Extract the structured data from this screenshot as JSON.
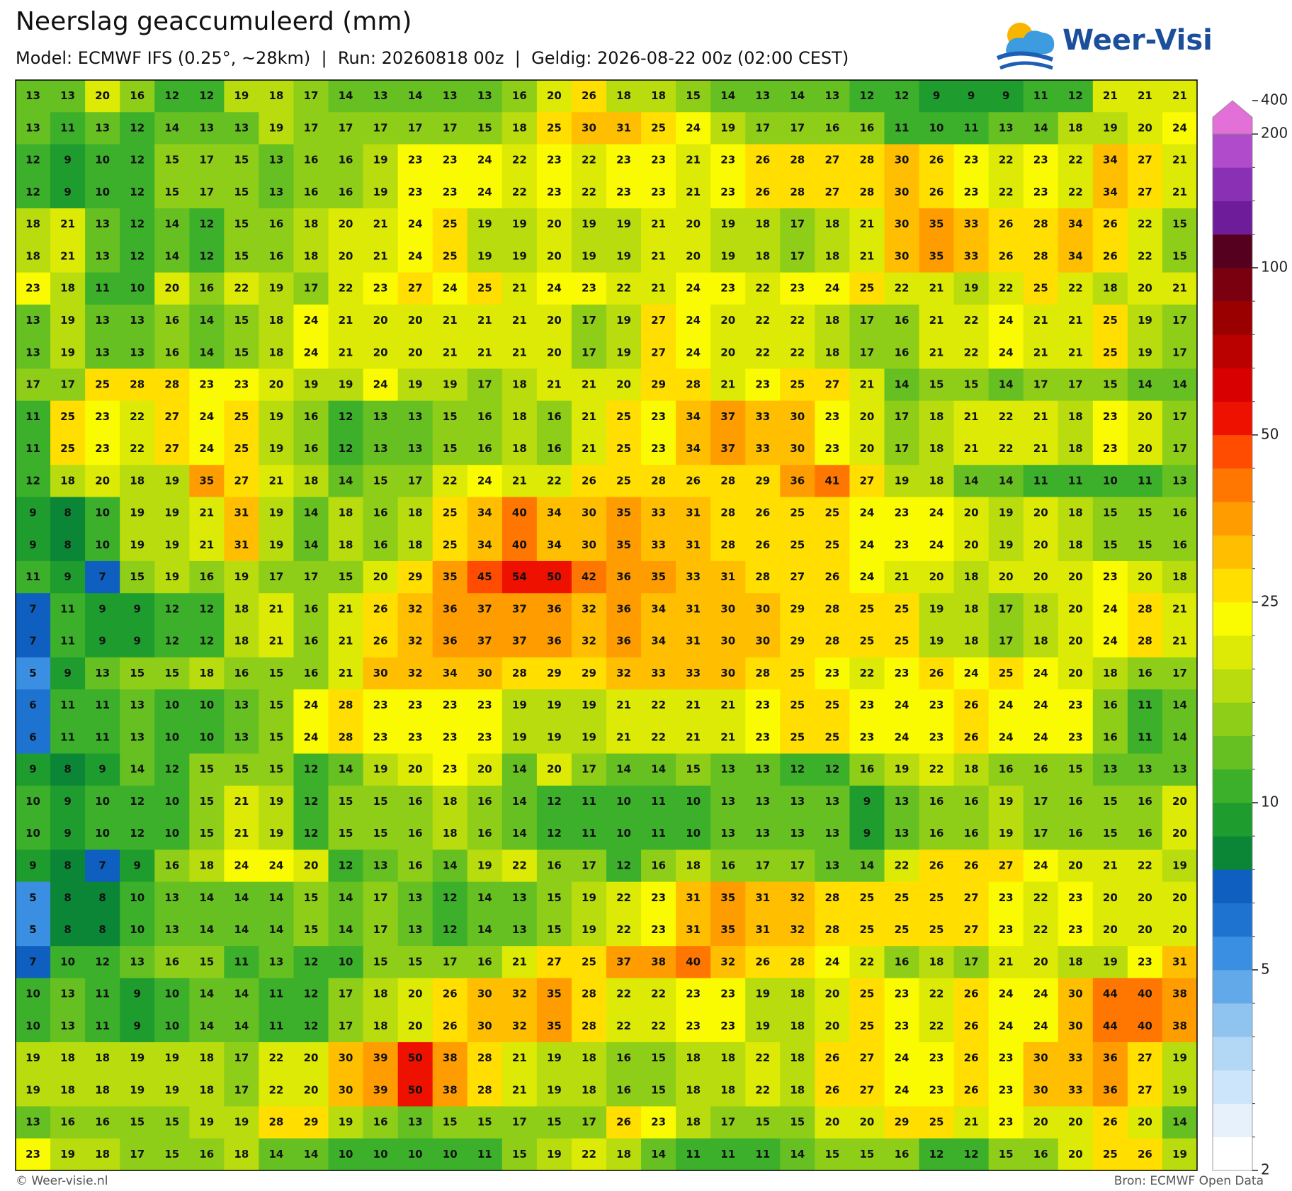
{
  "header": {
    "title": "Neerslag geaccumuleerd (mm)",
    "subtitle": "Model: ECMWF IFS (0.25°, ~28km)  |  Run: 20260818 00z  |  Geldig: 2026-08-22 00z (02:00 CEST)",
    "logo": "Weer-Visie"
  },
  "map": {
    "values": [
      [
        13,
        13,
        20,
        16,
        12,
        12,
        19,
        18,
        17,
        14,
        13,
        14,
        13,
        13,
        16,
        20,
        26,
        18,
        18,
        15,
        14,
        13,
        14,
        13,
        12,
        12,
        9,
        9,
        9,
        11,
        12,
        21,
        21,
        21
      ],
      [
        13,
        11,
        13,
        12,
        14,
        13,
        13,
        19,
        17,
        17,
        17,
        17,
        17,
        15,
        18,
        25,
        30,
        31,
        25,
        24,
        19,
        17,
        17,
        16,
        16,
        11,
        10,
        11,
        13,
        14,
        18,
        19,
        20,
        24
      ],
      [
        12,
        9,
        10,
        12,
        15,
        17,
        15,
        13,
        16,
        16,
        19,
        23,
        23,
        24,
        22,
        23,
        22,
        23,
        23,
        21,
        23,
        26,
        28,
        27,
        28,
        30,
        26,
        23,
        22,
        23,
        22,
        34,
        27,
        21
      ],
      [
        12,
        9,
        10,
        12,
        15,
        17,
        15,
        13,
        16,
        16,
        19,
        23,
        23,
        24,
        22,
        23,
        22,
        23,
        23,
        21,
        23,
        26,
        28,
        27,
        28,
        30,
        26,
        23,
        22,
        23,
        22,
        34,
        27,
        21
      ],
      [
        18,
        21,
        13,
        12,
        14,
        12,
        15,
        16,
        18,
        20,
        21,
        24,
        25,
        19,
        19,
        20,
        19,
        19,
        21,
        20,
        19,
        18,
        17,
        18,
        21,
        30,
        35,
        33,
        26,
        28,
        34,
        26,
        22,
        15
      ],
      [
        18,
        21,
        13,
        12,
        14,
        12,
        15,
        16,
        18,
        20,
        21,
        24,
        25,
        19,
        19,
        20,
        19,
        19,
        21,
        20,
        19,
        18,
        17,
        18,
        21,
        30,
        35,
        33,
        26,
        28,
        34,
        26,
        22,
        15
      ],
      [
        23,
        18,
        11,
        10,
        20,
        16,
        22,
        19,
        17,
        22,
        23,
        27,
        24,
        25,
        21,
        24,
        23,
        22,
        21,
        24,
        23,
        22,
        23,
        24,
        25,
        22,
        21,
        19,
        22,
        25,
        22,
        18,
        20,
        21
      ],
      [
        13,
        19,
        13,
        13,
        16,
        14,
        15,
        18,
        24,
        21,
        20,
        20,
        21,
        21,
        21,
        20,
        17,
        19,
        27,
        24,
        20,
        22,
        22,
        18,
        17,
        16,
        21,
        22,
        24,
        21,
        21,
        25,
        19,
        17
      ],
      [
        13,
        19,
        13,
        13,
        16,
        14,
        15,
        18,
        24,
        21,
        20,
        20,
        21,
        21,
        21,
        20,
        17,
        19,
        27,
        24,
        20,
        22,
        22,
        18,
        17,
        16,
        21,
        22,
        24,
        21,
        21,
        25,
        19,
        17
      ],
      [
        17,
        17,
        25,
        28,
        28,
        23,
        23,
        20,
        19,
        19,
        24,
        19,
        19,
        17,
        18,
        21,
        21,
        20,
        29,
        28,
        21,
        23,
        25,
        27,
        21,
        14,
        15,
        15,
        14,
        17,
        17,
        15,
        14,
        14
      ],
      [
        11,
        25,
        23,
        22,
        27,
        24,
        25,
        19,
        16,
        12,
        13,
        13,
        15,
        16,
        18,
        16,
        21,
        25,
        23,
        34,
        37,
        33,
        30,
        23,
        20,
        17,
        18,
        21,
        22,
        21,
        18,
        23,
        20,
        17
      ],
      [
        11,
        25,
        23,
        22,
        27,
        24,
        25,
        19,
        16,
        12,
        13,
        13,
        15,
        16,
        18,
        16,
        21,
        25,
        23,
        34,
        37,
        33,
        30,
        23,
        20,
        17,
        18,
        21,
        22,
        21,
        18,
        23,
        20,
        17
      ],
      [
        12,
        18,
        20,
        18,
        19,
        35,
        27,
        21,
        18,
        14,
        15,
        17,
        22,
        24,
        21,
        22,
        26,
        25,
        28,
        26,
        28,
        29,
        36,
        41,
        27,
        19,
        18,
        14,
        14,
        11,
        11,
        10,
        11,
        13
      ],
      [
        9,
        8,
        10,
        19,
        19,
        21,
        31,
        19,
        14,
        18,
        16,
        18,
        25,
        34,
        40,
        34,
        30,
        35,
        33,
        31,
        28,
        26,
        25,
        25,
        24,
        23,
        24,
        20,
        19,
        20,
        18,
        15,
        15,
        16
      ],
      [
        9,
        8,
        10,
        19,
        19,
        21,
        31,
        19,
        14,
        18,
        16,
        18,
        25,
        34,
        40,
        34,
        30,
        35,
        33,
        31,
        28,
        26,
        25,
        25,
        24,
        23,
        24,
        20,
        19,
        20,
        18,
        15,
        15,
        16
      ],
      [
        11,
        9,
        7,
        15,
        19,
        16,
        19,
        17,
        17,
        15,
        20,
        29,
        35,
        45,
        54,
        50,
        42,
        36,
        35,
        33,
        31,
        28,
        27,
        26,
        24,
        21,
        20,
        18,
        20,
        20,
        20,
        23,
        20,
        18
      ],
      [
        7,
        11,
        9,
        9,
        12,
        12,
        18,
        21,
        16,
        21,
        26,
        32,
        36,
        37,
        37,
        36,
        32,
        36,
        34,
        31,
        30,
        30,
        29,
        28,
        25,
        25,
        19,
        18,
        17,
        18,
        20,
        24,
        28,
        21
      ],
      [
        7,
        11,
        9,
        9,
        12,
        12,
        18,
        21,
        16,
        21,
        26,
        32,
        36,
        37,
        37,
        36,
        32,
        36,
        34,
        31,
        30,
        30,
        29,
        28,
        25,
        25,
        19,
        18,
        17,
        18,
        20,
        24,
        28,
        21
      ],
      [
        5,
        9,
        13,
        15,
        15,
        18,
        16,
        15,
        16,
        21,
        30,
        32,
        34,
        30,
        28,
        29,
        29,
        32,
        33,
        33,
        30,
        28,
        25,
        23,
        22,
        23,
        26,
        24,
        25,
        24,
        20,
        18,
        16,
        17
      ],
      [
        6,
        11,
        11,
        13,
        10,
        10,
        13,
        15,
        24,
        28,
        23,
        23,
        23,
        23,
        19,
        19,
        19,
        21,
        22,
        21,
        21,
        23,
        25,
        25,
        23,
        24,
        23,
        26,
        24,
        24,
        23,
        16,
        11,
        14
      ],
      [
        6,
        11,
        11,
        13,
        10,
        10,
        13,
        15,
        24,
        28,
        23,
        23,
        23,
        23,
        19,
        19,
        19,
        21,
        22,
        21,
        21,
        23,
        25,
        25,
        23,
        24,
        23,
        26,
        24,
        24,
        23,
        16,
        11,
        14
      ],
      [
        9,
        8,
        9,
        14,
        12,
        15,
        15,
        15,
        12,
        14,
        19,
        20,
        23,
        20,
        14,
        20,
        17,
        14,
        14,
        15,
        13,
        13,
        12,
        12,
        16,
        19,
        22,
        18,
        16,
        16,
        15,
        13,
        13,
        13
      ],
      [
        10,
        9,
        10,
        12,
        10,
        15,
        21,
        19,
        12,
        15,
        15,
        16,
        18,
        16,
        14,
        12,
        11,
        10,
        11,
        10,
        13,
        13,
        13,
        13,
        9,
        13,
        16,
        16,
        19,
        17,
        16,
        15,
        16,
        20
      ],
      [
        10,
        9,
        10,
        12,
        10,
        15,
        21,
        19,
        12,
        15,
        15,
        16,
        18,
        16,
        14,
        12,
        11,
        10,
        11,
        10,
        13,
        13,
        13,
        13,
        9,
        13,
        16,
        16,
        19,
        17,
        16,
        15,
        16,
        20
      ],
      [
        9,
        8,
        7,
        9,
        16,
        18,
        24,
        24,
        20,
        12,
        13,
        16,
        14,
        19,
        22,
        16,
        17,
        12,
        16,
        18,
        16,
        17,
        17,
        13,
        14,
        22,
        26,
        26,
        27,
        24,
        20,
        21,
        22,
        19
      ],
      [
        5,
        8,
        8,
        10,
        13,
        14,
        14,
        14,
        15,
        14,
        17,
        13,
        12,
        14,
        13,
        15,
        19,
        22,
        23,
        31,
        35,
        31,
        32,
        28,
        25,
        25,
        25,
        27,
        23,
        22,
        23,
        20,
        20,
        20
      ],
      [
        5,
        8,
        8,
        10,
        13,
        14,
        14,
        14,
        15,
        14,
        17,
        13,
        12,
        14,
        13,
        15,
        19,
        22,
        23,
        31,
        35,
        31,
        32,
        28,
        25,
        25,
        25,
        27,
        23,
        22,
        23,
        20,
        20,
        20
      ],
      [
        7,
        10,
        12,
        13,
        16,
        15,
        11,
        13,
        12,
        10,
        15,
        15,
        17,
        16,
        21,
        27,
        25,
        37,
        38,
        40,
        32,
        26,
        28,
        24,
        22,
        16,
        18,
        17,
        21,
        20,
        18,
        19,
        23,
        31
      ],
      [
        10,
        13,
        11,
        9,
        10,
        14,
        14,
        11,
        12,
        17,
        18,
        20,
        26,
        30,
        32,
        35,
        28,
        22,
        22,
        23,
        23,
        19,
        18,
        20,
        25,
        23,
        22,
        26,
        24,
        24,
        30,
        44,
        40,
        38
      ],
      [
        10,
        13,
        11,
        9,
        10,
        14,
        14,
        11,
        12,
        17,
        18,
        20,
        26,
        30,
        32,
        35,
        28,
        22,
        22,
        23,
        23,
        19,
        18,
        20,
        25,
        23,
        22,
        26,
        24,
        24,
        30,
        44,
        40,
        38
      ],
      [
        19,
        18,
        18,
        19,
        19,
        18,
        17,
        22,
        20,
        30,
        39,
        50,
        38,
        28,
        21,
        19,
        18,
        16,
        15,
        18,
        18,
        22,
        18,
        26,
        27,
        24,
        23,
        26,
        23,
        30,
        33,
        36,
        27,
        19
      ],
      [
        19,
        18,
        18,
        19,
        19,
        18,
        17,
        22,
        20,
        30,
        39,
        50,
        38,
        28,
        21,
        19,
        18,
        16,
        15,
        18,
        18,
        22,
        18,
        26,
        27,
        24,
        23,
        26,
        23,
        30,
        33,
        36,
        27,
        19
      ],
      [
        13,
        16,
        16,
        15,
        15,
        19,
        19,
        28,
        29,
        19,
        16,
        13,
        15,
        15,
        17,
        15,
        17,
        26,
        23,
        18,
        17,
        15,
        15,
        20,
        20,
        29,
        25,
        21,
        23,
        20,
        20,
        26,
        20,
        14
      ],
      [
        23,
        19,
        18,
        17,
        15,
        16,
        18,
        14,
        14,
        10,
        10,
        10,
        10,
        11,
        15,
        19,
        22,
        18,
        14,
        11,
        11,
        11,
        14,
        15,
        15,
        16,
        12,
        12,
        15,
        16,
        20,
        25,
        26,
        19
      ]
    ]
  },
  "colorbar": {
    "levels": [
      2,
      2.5,
      3,
      3.5,
      4,
      4.5,
      5,
      6,
      7,
      8,
      9,
      10,
      12.5,
      15,
      17.5,
      20,
      22.5,
      25,
      30,
      35,
      40,
      45,
      50,
      60,
      70,
      80,
      90,
      100,
      125,
      150,
      175,
      200,
      400
    ],
    "colors": [
      "#ffffff",
      "#e6f1fc",
      "#cde5fa",
      "#b2d8f6",
      "#8fc4f1",
      "#62a9ea",
      "#3a8fe2",
      "#1f73d0",
      "#0e5fc0",
      "#0b8636",
      "#1e9d2e",
      "#3cb02a",
      "#66c022",
      "#8fce18",
      "#b8dc0e",
      "#dcea06",
      "#fafa00",
      "#ffde00",
      "#ffbf00",
      "#ff9d00",
      "#ff7700",
      "#ff4c00",
      "#ee1100",
      "#d80000",
      "#bb0000",
      "#9a0000",
      "#7a0010",
      "#560020",
      "#6e1c9a",
      "#8a30b4",
      "#b04ccc",
      "#e270d8"
    ],
    "ticks": [
      2,
      5,
      10,
      25,
      50,
      100,
      200,
      400
    ]
  },
  "footer": {
    "left": "© Weer-visie.nl",
    "right": "Bron: ECMWF Open Data"
  }
}
